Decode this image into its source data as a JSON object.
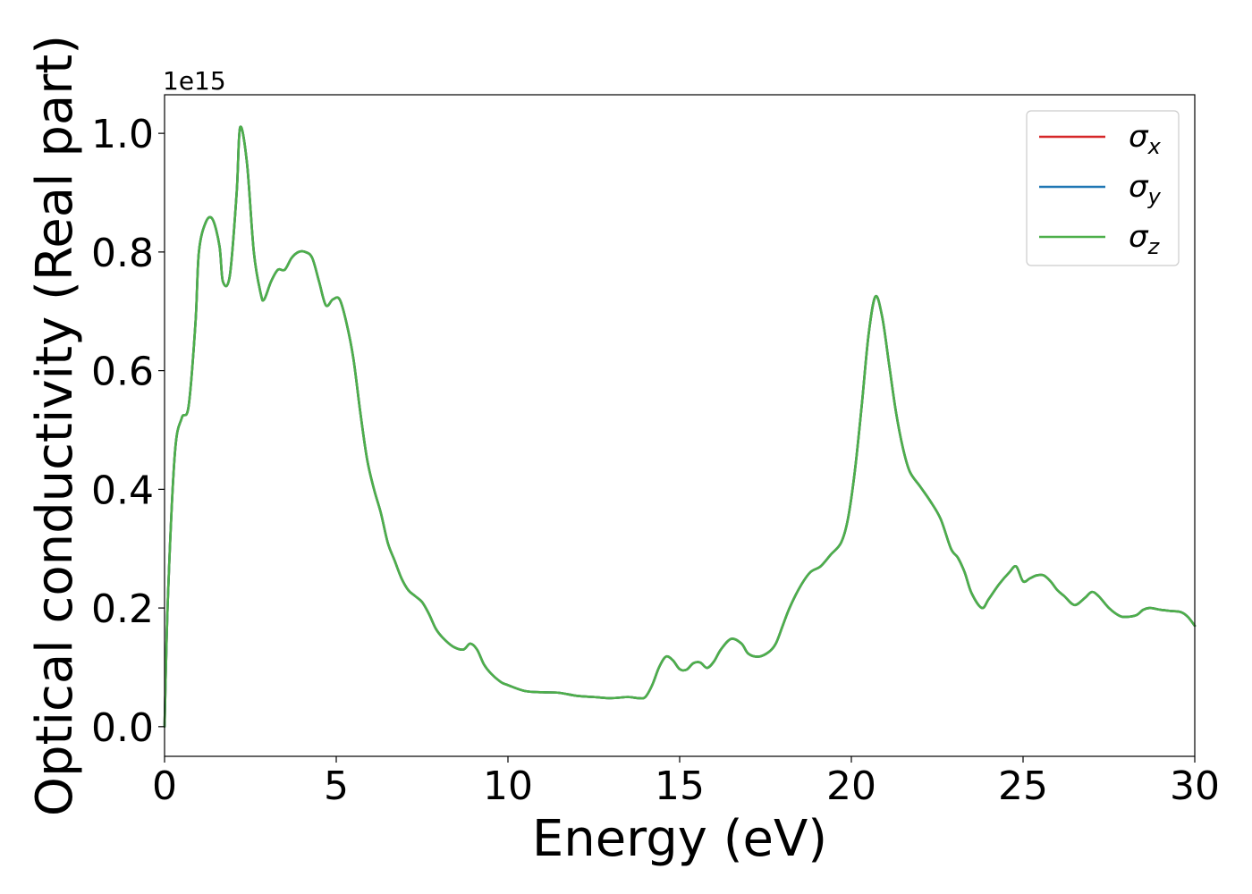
{
  "chart_data": {
    "type": "line",
    "xlabel": "Energy (eV)",
    "ylabel": "Optical conductivity (Real part)",
    "offset_label": "1e15",
    "xlim": [
      0,
      30
    ],
    "ylim": [
      -0.05,
      1.065
    ],
    "xticks": [
      0,
      5,
      10,
      15,
      20,
      25,
      30
    ],
    "xtick_labels": [
      "0",
      "5",
      "10",
      "15",
      "20",
      "25",
      "30"
    ],
    "yticks": [
      0.0,
      0.2,
      0.4,
      0.6,
      0.8,
      1.0
    ],
    "ytick_labels": [
      "0.0",
      "0.2",
      "0.4",
      "0.6",
      "0.8",
      "1.0"
    ],
    "grid": false,
    "legend_position": "top-right",
    "x": [
      0,
      0.1,
      0.3,
      0.5,
      0.7,
      0.9,
      1.0,
      1.2,
      1.4,
      1.6,
      1.7,
      1.9,
      2.1,
      2.2,
      2.4,
      2.6,
      2.8,
      2.9,
      3.1,
      3.3,
      3.5,
      3.7,
      3.9,
      4.1,
      4.3,
      4.5,
      4.7,
      4.9,
      5.1,
      5.3,
      5.5,
      5.7,
      5.9,
      6.1,
      6.3,
      6.5,
      6.7,
      6.9,
      7.1,
      7.3,
      7.5,
      7.7,
      7.9,
      8.1,
      8.4,
      8.7,
      8.9,
      9.1,
      9.3,
      9.5,
      9.8,
      10.0,
      10.5,
      11.0,
      11.5,
      12.0,
      12.5,
      13.0,
      13.5,
      13.8,
      14.0,
      14.2,
      14.4,
      14.6,
      14.8,
      15.0,
      15.2,
      15.4,
      15.6,
      15.8,
      16.0,
      16.2,
      16.5,
      16.8,
      17.0,
      17.3,
      17.6,
      17.8,
      18.0,
      18.2,
      18.5,
      18.8,
      19.1,
      19.4,
      19.7,
      19.9,
      20.1,
      20.3,
      20.5,
      20.7,
      20.9,
      21.1,
      21.3,
      21.5,
      21.7,
      22.0,
      22.3,
      22.6,
      22.9,
      23.1,
      23.3,
      23.5,
      23.8,
      24.0,
      24.3,
      24.6,
      24.8,
      25.0,
      25.2,
      25.4,
      25.6,
      25.8,
      26.0,
      26.2,
      26.5,
      26.8,
      27.0,
      27.2,
      27.5,
      27.8,
      28.0,
      28.3,
      28.5,
      28.7,
      29.0,
      29.3,
      29.6,
      29.8,
      30.0
    ],
    "series": [
      {
        "name": "σx",
        "color": "#d62728",
        "values": [
          0.0,
          0.22,
          0.46,
          0.52,
          0.54,
          0.68,
          0.8,
          0.85,
          0.855,
          0.81,
          0.75,
          0.76,
          0.9,
          1.01,
          0.95,
          0.8,
          0.73,
          0.72,
          0.75,
          0.77,
          0.77,
          0.79,
          0.8,
          0.8,
          0.79,
          0.75,
          0.71,
          0.72,
          0.72,
          0.68,
          0.62,
          0.53,
          0.45,
          0.4,
          0.36,
          0.31,
          0.28,
          0.25,
          0.23,
          0.22,
          0.21,
          0.19,
          0.165,
          0.15,
          0.135,
          0.13,
          0.14,
          0.13,
          0.105,
          0.09,
          0.075,
          0.07,
          0.06,
          0.058,
          0.057,
          0.052,
          0.05,
          0.048,
          0.05,
          0.048,
          0.05,
          0.07,
          0.1,
          0.118,
          0.112,
          0.097,
          0.096,
          0.107,
          0.108,
          0.099,
          0.11,
          0.13,
          0.148,
          0.14,
          0.123,
          0.118,
          0.126,
          0.14,
          0.17,
          0.2,
          0.235,
          0.26,
          0.27,
          0.29,
          0.31,
          0.35,
          0.43,
          0.54,
          0.66,
          0.725,
          0.69,
          0.61,
          0.53,
          0.47,
          0.43,
          0.405,
          0.38,
          0.35,
          0.3,
          0.285,
          0.26,
          0.225,
          0.2,
          0.215,
          0.24,
          0.26,
          0.27,
          0.245,
          0.25,
          0.255,
          0.255,
          0.245,
          0.23,
          0.22,
          0.205,
          0.217,
          0.227,
          0.22,
          0.2,
          0.187,
          0.185,
          0.188,
          0.197,
          0.2,
          0.197,
          0.195,
          0.193,
          0.185,
          0.17
        ]
      },
      {
        "name": "σy",
        "color": "#1f77b4",
        "values": [
          0.0,
          0.22,
          0.46,
          0.52,
          0.54,
          0.68,
          0.8,
          0.85,
          0.855,
          0.81,
          0.75,
          0.76,
          0.9,
          1.01,
          0.95,
          0.8,
          0.73,
          0.72,
          0.75,
          0.77,
          0.77,
          0.79,
          0.8,
          0.8,
          0.79,
          0.75,
          0.71,
          0.72,
          0.72,
          0.68,
          0.62,
          0.53,
          0.45,
          0.4,
          0.36,
          0.31,
          0.28,
          0.25,
          0.23,
          0.22,
          0.21,
          0.19,
          0.165,
          0.15,
          0.135,
          0.13,
          0.14,
          0.13,
          0.105,
          0.09,
          0.075,
          0.07,
          0.06,
          0.058,
          0.057,
          0.052,
          0.05,
          0.048,
          0.05,
          0.048,
          0.05,
          0.07,
          0.1,
          0.118,
          0.112,
          0.097,
          0.096,
          0.107,
          0.108,
          0.099,
          0.11,
          0.13,
          0.148,
          0.14,
          0.123,
          0.118,
          0.126,
          0.14,
          0.17,
          0.2,
          0.235,
          0.26,
          0.27,
          0.29,
          0.31,
          0.35,
          0.43,
          0.54,
          0.66,
          0.725,
          0.69,
          0.61,
          0.53,
          0.47,
          0.43,
          0.405,
          0.38,
          0.35,
          0.3,
          0.285,
          0.26,
          0.225,
          0.2,
          0.215,
          0.24,
          0.26,
          0.27,
          0.245,
          0.25,
          0.255,
          0.255,
          0.245,
          0.23,
          0.22,
          0.205,
          0.217,
          0.227,
          0.22,
          0.2,
          0.187,
          0.185,
          0.188,
          0.197,
          0.2,
          0.197,
          0.195,
          0.193,
          0.185,
          0.17
        ]
      },
      {
        "name": "σz",
        "color": "#4daf4a",
        "values": [
          0.0,
          0.22,
          0.46,
          0.52,
          0.54,
          0.68,
          0.8,
          0.85,
          0.855,
          0.81,
          0.75,
          0.76,
          0.9,
          1.01,
          0.95,
          0.8,
          0.73,
          0.72,
          0.75,
          0.77,
          0.77,
          0.79,
          0.8,
          0.8,
          0.79,
          0.75,
          0.71,
          0.72,
          0.72,
          0.68,
          0.62,
          0.53,
          0.45,
          0.4,
          0.36,
          0.31,
          0.28,
          0.25,
          0.23,
          0.22,
          0.21,
          0.19,
          0.165,
          0.15,
          0.135,
          0.13,
          0.14,
          0.13,
          0.105,
          0.09,
          0.075,
          0.07,
          0.06,
          0.058,
          0.057,
          0.052,
          0.05,
          0.048,
          0.05,
          0.048,
          0.05,
          0.07,
          0.1,
          0.118,
          0.112,
          0.097,
          0.096,
          0.107,
          0.108,
          0.099,
          0.11,
          0.13,
          0.148,
          0.14,
          0.123,
          0.118,
          0.126,
          0.14,
          0.17,
          0.2,
          0.235,
          0.26,
          0.27,
          0.29,
          0.31,
          0.35,
          0.43,
          0.54,
          0.66,
          0.725,
          0.69,
          0.61,
          0.53,
          0.47,
          0.43,
          0.405,
          0.38,
          0.35,
          0.3,
          0.285,
          0.26,
          0.225,
          0.2,
          0.215,
          0.24,
          0.26,
          0.27,
          0.245,
          0.25,
          0.255,
          0.255,
          0.245,
          0.23,
          0.22,
          0.205,
          0.217,
          0.227,
          0.22,
          0.2,
          0.187,
          0.185,
          0.188,
          0.197,
          0.2,
          0.197,
          0.195,
          0.193,
          0.185,
          0.17
        ]
      }
    ]
  }
}
